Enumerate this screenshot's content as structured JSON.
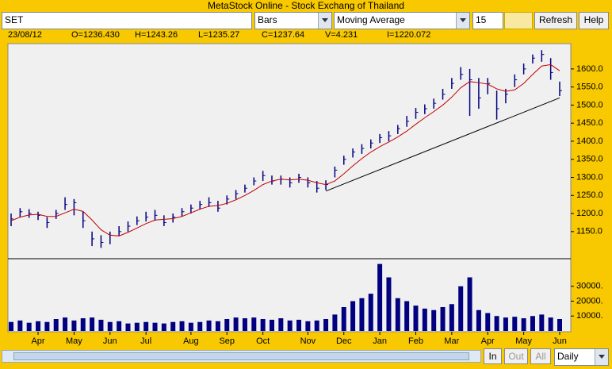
{
  "window": {
    "title": "MetaStock Online - Stock Exchang of Thailand"
  },
  "toolbar": {
    "symbol": "SET",
    "chart_style": "Bars",
    "indicator": "Moving Average",
    "period": "15",
    "refresh": "Refresh",
    "help": "Help"
  },
  "info": {
    "date": "23/08/12",
    "open": "O=1236.430",
    "high": "H=1243.26",
    "low": "L=1235.27",
    "close": "C=1237.64",
    "volume": "V=4.231",
    "indicator": "I=1220.072"
  },
  "chart_data": [
    {
      "type": "ohlc",
      "categories": [
        null,
        null,
        null,
        "Apr",
        null,
        null,
        null,
        "May",
        null,
        null,
        null,
        "Jun",
        null,
        null,
        null,
        "Jul",
        null,
        null,
        null,
        null,
        "Aug",
        null,
        null,
        null,
        "Sep",
        null,
        null,
        null,
        "Oct",
        null,
        null,
        null,
        null,
        "Nov",
        null,
        null,
        null,
        "Dec",
        null,
        null,
        null,
        "Jan",
        null,
        null,
        null,
        "Feb",
        null,
        null,
        null,
        "Mar",
        null,
        null,
        null,
        "Apr",
        null,
        null,
        null,
        "May",
        null,
        null,
        null,
        "Jun"
      ],
      "high": [
        1200,
        1215,
        1212,
        1205,
        1190,
        1210,
        1245,
        1240,
        1205,
        1150,
        1140,
        1150,
        1165,
        1178,
        1192,
        1205,
        1210,
        1195,
        1200,
        1215,
        1225,
        1235,
        1245,
        1235,
        1250,
        1265,
        1280,
        1300,
        1318,
        1305,
        1305,
        1300,
        1310,
        1300,
        1290,
        1292,
        1330,
        1360,
        1380,
        1392,
        1405,
        1420,
        1428,
        1445,
        1470,
        1492,
        1502,
        1518,
        1545,
        1575,
        1605,
        1600,
        1575,
        1575,
        1540,
        1545,
        1585,
        1615,
        1640,
        1652,
        1630,
        1565
      ],
      "low": [
        1165,
        1190,
        1188,
        1182,
        1160,
        1185,
        1210,
        1195,
        1160,
        1110,
        1105,
        1115,
        1138,
        1150,
        1168,
        1178,
        1180,
        1165,
        1175,
        1192,
        1200,
        1212,
        1218,
        1205,
        1225,
        1240,
        1258,
        1278,
        1290,
        1280,
        1280,
        1272,
        1285,
        1272,
        1258,
        1265,
        1300,
        1335,
        1355,
        1365,
        1380,
        1395,
        1400,
        1420,
        1440,
        1462,
        1475,
        1490,
        1515,
        1545,
        1570,
        1470,
        1490,
        1530,
        1460,
        1505,
        1550,
        1585,
        1615,
        1620,
        1570,
        1525
      ],
      "close": [
        1185,
        1205,
        1200,
        1195,
        1175,
        1200,
        1225,
        1230,
        1180,
        1130,
        1120,
        1140,
        1150,
        1165,
        1180,
        1190,
        1195,
        1175,
        1190,
        1205,
        1215,
        1225,
        1230,
        1215,
        1240,
        1255,
        1270,
        1290,
        1305,
        1290,
        1295,
        1285,
        1300,
        1285,
        1270,
        1280,
        1320,
        1350,
        1370,
        1380,
        1395,
        1410,
        1415,
        1435,
        1455,
        1480,
        1490,
        1505,
        1530,
        1560,
        1585,
        1570,
        1520,
        1560,
        1490,
        1530,
        1570,
        1600,
        1630,
        1640,
        1590,
        1540
      ],
      "color": "#000080",
      "moving_average": {
        "color": "#c00000",
        "values": [
          1180,
          1190,
          1196,
          1198,
          1192,
          1192,
          1202,
          1212,
          1206,
          1182,
          1155,
          1140,
          1138,
          1148,
          1160,
          1172,
          1182,
          1184,
          1186,
          1192,
          1202,
          1212,
          1220,
          1222,
          1228,
          1238,
          1250,
          1264,
          1280,
          1290,
          1295,
          1293,
          1295,
          1292,
          1285,
          1280,
          1290,
          1310,
          1332,
          1352,
          1370,
          1385,
          1398,
          1412,
          1428,
          1447,
          1465,
          1482,
          1500,
          1522,
          1548,
          1565,
          1562,
          1558,
          1545,
          1538,
          1542,
          1560,
          1585,
          1608,
          1612,
          1595
        ]
      },
      "trendline": {
        "color": "#000000",
        "x": [
          35,
          61
        ],
        "values": [
          1262,
          1520
        ]
      },
      "ylim": [
        1075,
        1670
      ],
      "yticks": [
        {
          "value": 1150,
          "label": "1150.0"
        },
        {
          "value": 1200,
          "label": "1200.0"
        },
        {
          "value": 1250,
          "label": "1250.0"
        },
        {
          "value": 1300,
          "label": "1300.0"
        },
        {
          "value": 1350,
          "label": "1350.0"
        },
        {
          "value": 1400,
          "label": "1400.0"
        },
        {
          "value": 1450,
          "label": "1450.0"
        },
        {
          "value": 1500,
          "label": "1500.0"
        },
        {
          "value": 1550,
          "label": "1550.0"
        },
        {
          "value": 1600,
          "label": "1600.0"
        }
      ]
    },
    {
      "type": "bar",
      "values": [
        6000,
        7000,
        5500,
        6500,
        6000,
        8000,
        9000,
        7000,
        8500,
        9000,
        7500,
        6000,
        6500,
        5000,
        5500,
        6000,
        5500,
        5000,
        6000,
        6500,
        5500,
        6000,
        7000,
        6500,
        8000,
        9000,
        8500,
        9000,
        8000,
        7500,
        8500,
        7000,
        7500,
        6500,
        7000,
        8000,
        11000,
        16000,
        20000,
        22000,
        25000,
        45000,
        36000,
        22000,
        20000,
        17000,
        15000,
        14000,
        16000,
        18000,
        30000,
        36000,
        14000,
        12000,
        10000,
        9000,
        9500,
        8500,
        10000,
        11000,
        9000,
        8000
      ],
      "color": "#000080",
      "ylim": [
        0,
        48000
      ],
      "yticks": [
        {
          "value": 10000,
          "label": "10000."
        },
        {
          "value": 20000,
          "label": "20000."
        },
        {
          "value": 30000,
          "label": "30000."
        }
      ]
    }
  ],
  "footer": {
    "in": "In",
    "out": "Out",
    "all": "All",
    "interval": "Daily"
  }
}
